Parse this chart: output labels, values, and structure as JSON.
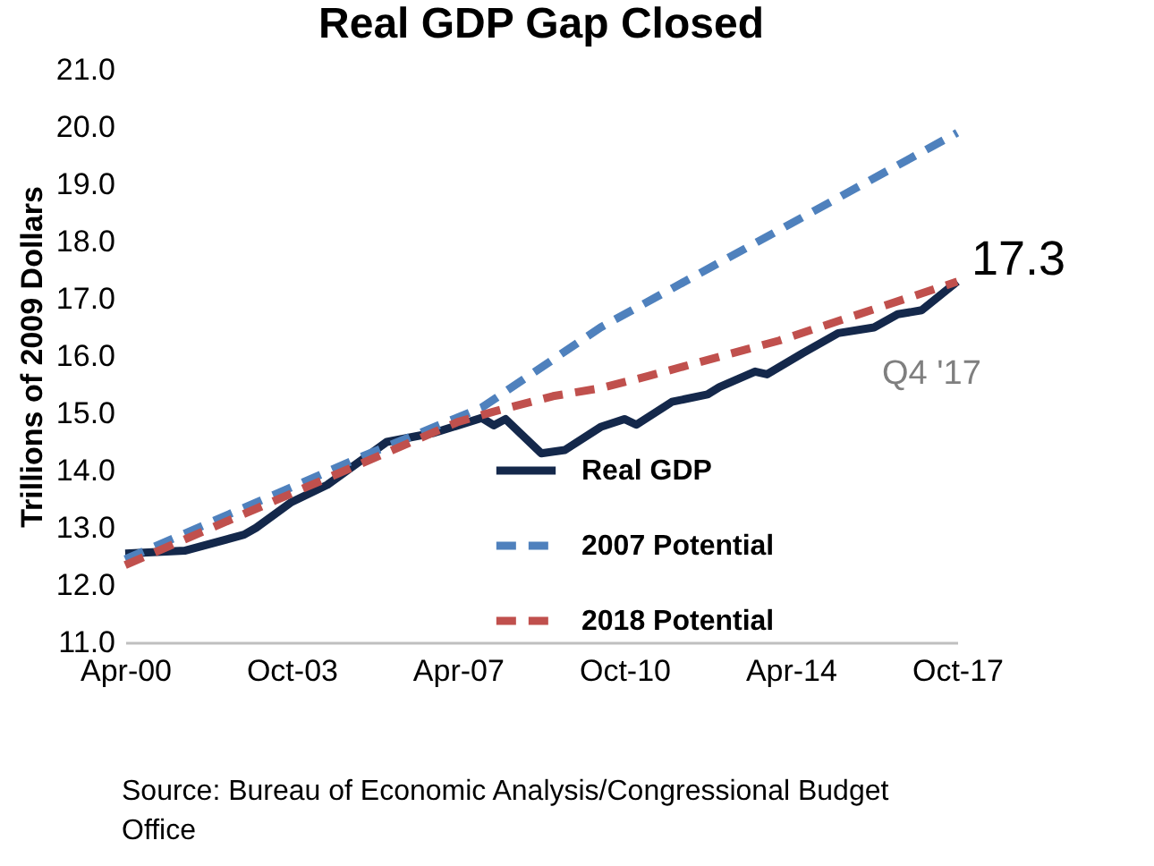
{
  "chart_data": {
    "type": "line",
    "title": "Real GDP Gap Closed",
    "ylabel": "Trillions of 2009 Dollars",
    "series": [
      {
        "name": "Real GDP",
        "color": "#14284b",
        "line_style": "solid",
        "x": [
          "2000-04",
          "2001-07",
          "2002-10",
          "2003-01",
          "2003-10",
          "2004-07",
          "2005-10",
          "2006-10",
          "2007-10",
          "2008-01",
          "2008-04",
          "2009-01",
          "2009-07",
          "2010-04",
          "2010-10",
          "2011-01",
          "2011-10",
          "2012-07",
          "2012-10",
          "2013-07",
          "2013-10",
          "2014-07",
          "2015-04",
          "2016-01",
          "2016-07",
          "2017-01",
          "2017-10"
        ],
        "values": [
          12.55,
          12.6,
          12.88,
          13.0,
          13.45,
          13.75,
          14.5,
          14.66,
          14.92,
          14.79,
          14.9,
          14.3,
          14.36,
          14.76,
          14.9,
          14.8,
          15.2,
          15.33,
          15.46,
          15.73,
          15.68,
          16.05,
          16.4,
          16.5,
          16.73,
          16.8,
          17.3
        ]
      },
      {
        "name": "2007 Potential",
        "color": "#4f81bd",
        "line_style": "dashed",
        "x": [
          "2000-04",
          "2005-04",
          "2007-10",
          "2010-04",
          "2014-01",
          "2017-10"
        ],
        "values": [
          12.45,
          14.25,
          15.1,
          16.5,
          18.2,
          19.9
        ]
      },
      {
        "name": "2018 Potential",
        "color": "#c0504d",
        "line_style": "dashed",
        "x": [
          "2000-04",
          "2007-04",
          "2008-01",
          "2009-04",
          "2010-04",
          "2011-04",
          "2014-01",
          "2017-10"
        ],
        "values": [
          12.35,
          14.85,
          15.03,
          15.3,
          15.44,
          15.65,
          16.27,
          17.3
        ]
      }
    ],
    "xlim": [
      "2000-04",
      "2017-10"
    ],
    "xticks": [
      {
        "value": "2000-04",
        "label": "Apr-00"
      },
      {
        "value": "2003-10",
        "label": "Oct-03"
      },
      {
        "value": "2007-04",
        "label": "Apr-07"
      },
      {
        "value": "2010-10",
        "label": "Oct-10"
      },
      {
        "value": "2014-04",
        "label": "Apr-14"
      },
      {
        "value": "2017-10",
        "label": "Oct-17"
      }
    ],
    "ylim": [
      11,
      21
    ],
    "yticks": [
      {
        "value": 11,
        "label": "11.0"
      },
      {
        "value": 12,
        "label": "12.0"
      },
      {
        "value": 13,
        "label": "13.0"
      },
      {
        "value": 14,
        "label": "14.0"
      },
      {
        "value": 15,
        "label": "15.0"
      },
      {
        "value": 16,
        "label": "16.0"
      },
      {
        "value": 17,
        "label": "17.0"
      },
      {
        "value": 18,
        "label": "18.0"
      },
      {
        "value": 19,
        "label": "19.0"
      },
      {
        "value": 20,
        "label": "20.0"
      },
      {
        "value": 21,
        "label": "21.0"
      }
    ],
    "annotations": [
      {
        "text": "17.3",
        "x": "2017-10",
        "y": 17.3
      },
      {
        "text": "Q4 '17",
        "x": "2017-10",
        "y": 17.3
      },
      "Source: Bureau of Economic Analysis/Congressional Budget Office"
    ],
    "legend": "bottom right",
    "grid": false
  }
}
